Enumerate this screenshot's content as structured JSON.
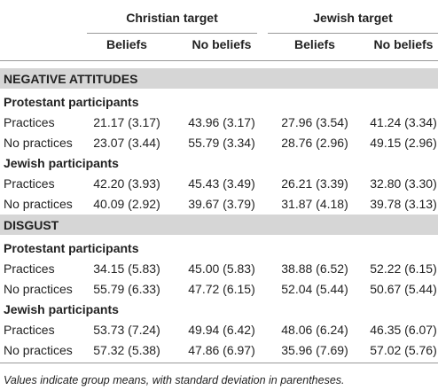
{
  "table": {
    "header": {
      "groups": [
        "Christian target",
        "Jewish target"
      ],
      "columns": [
        "Beliefs",
        "No beliefs",
        "Beliefs",
        "No beliefs"
      ]
    },
    "sections": [
      {
        "title": "NEGATIVE ATTITUDES",
        "groups": [
          {
            "title": "Protestant participants",
            "rows": [
              {
                "label": "Practices",
                "cells": [
                  "21.17 (3.17)",
                  "43.96 (3.17)",
                  "27.96 (3.54)",
                  "41.24 (3.34)"
                ]
              },
              {
                "label": "No practices",
                "cells": [
                  "23.07 (3.44)",
                  "55.79 (3.34)",
                  "28.76 (2.96)",
                  "49.15 (2.96)"
                ]
              }
            ]
          },
          {
            "title": "Jewish participants",
            "rows": [
              {
                "label": "Practices",
                "cells": [
                  "42.20 (3.93)",
                  "45.43 (3.49)",
                  "26.21 (3.39)",
                  "32.80 (3.30)"
                ]
              },
              {
                "label": "No practices",
                "cells": [
                  "40.09 (2.92)",
                  "39.67 (3.79)",
                  "31.87 (4.18)",
                  "39.78 (3.13)"
                ]
              }
            ]
          }
        ]
      },
      {
        "title": "DISGUST",
        "groups": [
          {
            "title": "Protestant participants",
            "rows": [
              {
                "label": "Practices",
                "cells": [
                  "34.15 (5.83)",
                  "45.00 (5.83)",
                  "38.88 (6.52)",
                  "52.22 (6.15)"
                ]
              },
              {
                "label": "No practices",
                "cells": [
                  "55.79 (6.33)",
                  "47.72 (6.15)",
                  "52.04 (5.44)",
                  "50.67 (5.44)"
                ]
              }
            ]
          },
          {
            "title": "Jewish participants",
            "rows": [
              {
                "label": "Practices",
                "cells": [
                  "53.73 (7.24)",
                  "49.94 (6.42)",
                  "48.06 (6.24)",
                  "46.35 (6.07)"
                ]
              },
              {
                "label": "No practices",
                "cells": [
                  "57.32 (5.38)",
                  "47.86 (6.97)",
                  "35.96 (7.69)",
                  "57.02 (5.76)"
                ]
              }
            ]
          }
        ]
      }
    ],
    "note": "Values indicate group means, with standard deviation in parentheses."
  }
}
